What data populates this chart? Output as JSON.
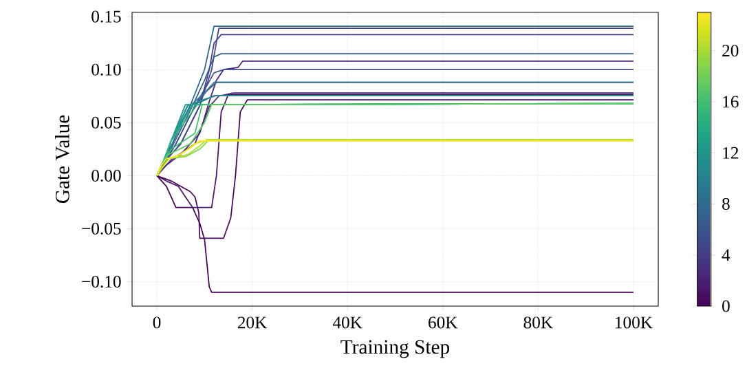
{
  "chart_data": {
    "type": "line",
    "xlabel": "Training Step",
    "ylabel": "Gate Value",
    "xlim": [
      -5200,
      105200
    ],
    "ylim": [
      -0.123,
      0.154
    ],
    "xticks": [
      0,
      {
        "value": 20000,
        "label": "20K"
      },
      {
        "value": 40000,
        "label": "40K"
      },
      {
        "value": 60000,
        "label": "60K"
      },
      {
        "value": 80000,
        "label": "80K"
      },
      {
        "value": 100000,
        "label": "100K"
      }
    ],
    "yticks": [
      {
        "value": -0.1,
        "label": "−0.10"
      },
      {
        "value": -0.05,
        "label": "−0.05"
      },
      {
        "value": 0,
        "label": "0.00"
      },
      {
        "value": 0.05,
        "label": "0.05"
      },
      {
        "value": 0.1,
        "label": "0.10"
      },
      {
        "value": 0.15,
        "label": "0.15"
      }
    ],
    "grid": true,
    "clim": [
      0,
      23
    ],
    "cticks": [
      0,
      4,
      8,
      12,
      16,
      20
    ],
    "series": [
      {
        "color": "#440154",
        "x": [
          0,
          2000,
          3000,
          4000,
          7500,
          9000,
          10000,
          11000,
          11500,
          100000
        ],
        "values": [
          0,
          -0.01,
          -0.02,
          -0.03,
          -0.03,
          -0.045,
          -0.06,
          -0.105,
          -0.11,
          -0.11
        ]
      },
      {
        "color": "#46085c",
        "x": [
          0,
          3000,
          5000,
          7000,
          8000,
          8800,
          9000,
          14000,
          15500,
          16500,
          17500,
          19000,
          100000
        ],
        "values": [
          0,
          -0.005,
          -0.01,
          -0.015,
          -0.02,
          -0.035,
          -0.059,
          -0.059,
          -0.04,
          0,
          0.06,
          0.0716,
          0.0716
        ]
      },
      {
        "color": "#471365",
        "x": [
          0,
          2000,
          4500,
          6000,
          7500,
          9000,
          11500,
          12500,
          13500,
          15000,
          100000
        ],
        "values": [
          0,
          -0.005,
          -0.01,
          -0.02,
          -0.03,
          -0.03,
          -0.03,
          0,
          0.06,
          0.0765,
          0.0765
        ]
      },
      {
        "color": "#482173",
        "x": [
          0,
          2000,
          5000,
          9000,
          11000,
          12500,
          14000,
          17000,
          18000,
          100000
        ],
        "values": [
          0,
          0.01,
          0.02,
          0.04,
          0.07,
          0.09,
          0.1,
          0.102,
          0.108,
          0.108
        ]
      },
      {
        "color": "#482878",
        "x": [
          0,
          3000,
          8000,
          11000,
          13000,
          16000,
          100000
        ],
        "values": [
          0,
          0.015,
          0.03,
          0.065,
          0.075,
          0.078,
          0.078
        ]
      },
      {
        "color": "#443983",
        "x": [
          0,
          2000,
          5000,
          9000,
          11000,
          12000,
          13500,
          100000
        ],
        "values": [
          0,
          0.015,
          0.03,
          0.066,
          0.1,
          0.125,
          0.133,
          0.133
        ]
      },
      {
        "color": "#414487",
        "x": [
          0,
          2000,
          5000,
          9000,
          11500,
          13000,
          100000
        ],
        "values": [
          0,
          0.015,
          0.03,
          0.066,
          0.1,
          0.139,
          0.139
        ]
      },
      {
        "color": "#3e4c8a",
        "x": [
          0,
          2000,
          4000,
          8000,
          10500,
          12000,
          14000,
          100000
        ],
        "values": [
          0,
          0.015,
          0.03,
          0.066,
          0.085,
          0.097,
          0.1,
          0.1
        ]
      },
      {
        "color": "#3a548c",
        "x": [
          0,
          2000,
          4000,
          8000,
          10500,
          12500,
          100000
        ],
        "values": [
          0,
          0.015,
          0.03,
          0.066,
          0.08,
          0.088,
          0.088
        ]
      },
      {
        "color": "#355f8d",
        "x": [
          0,
          2000,
          3500,
          7500,
          10000,
          12000,
          13500,
          100000
        ],
        "values": [
          0,
          0.015,
          0.03,
          0.066,
          0.09,
          0.112,
          0.115,
          0.115
        ]
      },
      {
        "color": "#31688e",
        "x": [
          0,
          2000,
          3500,
          7000,
          10000,
          12000,
          100000
        ],
        "values": [
          0,
          0.015,
          0.033,
          0.066,
          0.1,
          0.141,
          0.141
        ]
      },
      {
        "color": "#2c718e",
        "x": [
          0,
          2000,
          3500,
          7000,
          10000,
          12000,
          100000
        ],
        "values": [
          0,
          0.015,
          0.033,
          0.066,
          0.078,
          0.088,
          0.088
        ]
      },
      {
        "color": "#287c8e",
        "x": [
          0,
          2000,
          3000,
          7000,
          9500,
          12000,
          100000
        ],
        "values": [
          0,
          0.015,
          0.033,
          0.066,
          0.07,
          0.0755,
          0.0755
        ]
      },
      {
        "color": "#25848e",
        "x": [
          0,
          2000,
          3000,
          6500,
          10000,
          12500,
          100000
        ],
        "values": [
          0,
          0.015,
          0.033,
          0.066,
          0.072,
          0.0755,
          0.0755
        ]
      },
      {
        "color": "#21918c",
        "x": [
          0,
          1500,
          3000,
          6000,
          100000
        ],
        "values": [
          0,
          0.015,
          0.033,
          0.067,
          0.068
        ]
      },
      {
        "color": "#1f998a",
        "x": [
          0,
          1500,
          3000,
          6500,
          100000
        ],
        "values": [
          0,
          0.015,
          0.033,
          0.067,
          0.068
        ]
      },
      {
        "color": "#22a884",
        "x": [
          0,
          1500,
          3000,
          7500,
          100000
        ],
        "values": [
          0,
          0.015,
          0.033,
          0.067,
          0.068
        ]
      },
      {
        "color": "#2fb47c",
        "x": [
          0,
          1500,
          3000,
          8500,
          100000
        ],
        "values": [
          0,
          0.015,
          0.033,
          0.067,
          0.068
        ]
      },
      {
        "color": "#44bf70",
        "x": [
          0,
          1500,
          3000,
          8000,
          9500,
          100000
        ],
        "values": [
          0,
          0.015,
          0.025,
          0.04,
          0.067,
          0.068
        ]
      },
      {
        "color": "#5ec962",
        "x": [
          0,
          1500,
          2500,
          7000,
          10000,
          11500,
          100000
        ],
        "values": [
          0,
          0.015,
          0.02,
          0.03,
          0.05,
          0.067,
          0.068
        ]
      },
      {
        "color": "#86d549",
        "x": [
          0,
          1500,
          2500,
          6000,
          9000,
          11000,
          100000
        ],
        "values": [
          0,
          0.01,
          0.016,
          0.018,
          0.025,
          0.034,
          0.034
        ]
      },
      {
        "color": "#addc30",
        "x": [
          0,
          1500,
          2500,
          6500,
          9000,
          10500,
          100000
        ],
        "values": [
          0,
          0.01,
          0.016,
          0.02,
          0.028,
          0.034,
          0.034
        ]
      },
      {
        "color": "#d8e219",
        "x": [
          0,
          1500,
          2500,
          5000,
          8000,
          10000,
          100000
        ],
        "values": [
          0,
          0.01,
          0.016,
          0.02,
          0.03,
          0.033,
          0.033
        ]
      },
      {
        "color": "#fde725",
        "x": [
          0,
          1000,
          2000,
          4000,
          7000,
          9000,
          100000
        ],
        "values": [
          0,
          0.01,
          0.016,
          0.018,
          0.026,
          0.033,
          0.033
        ]
      }
    ]
  }
}
